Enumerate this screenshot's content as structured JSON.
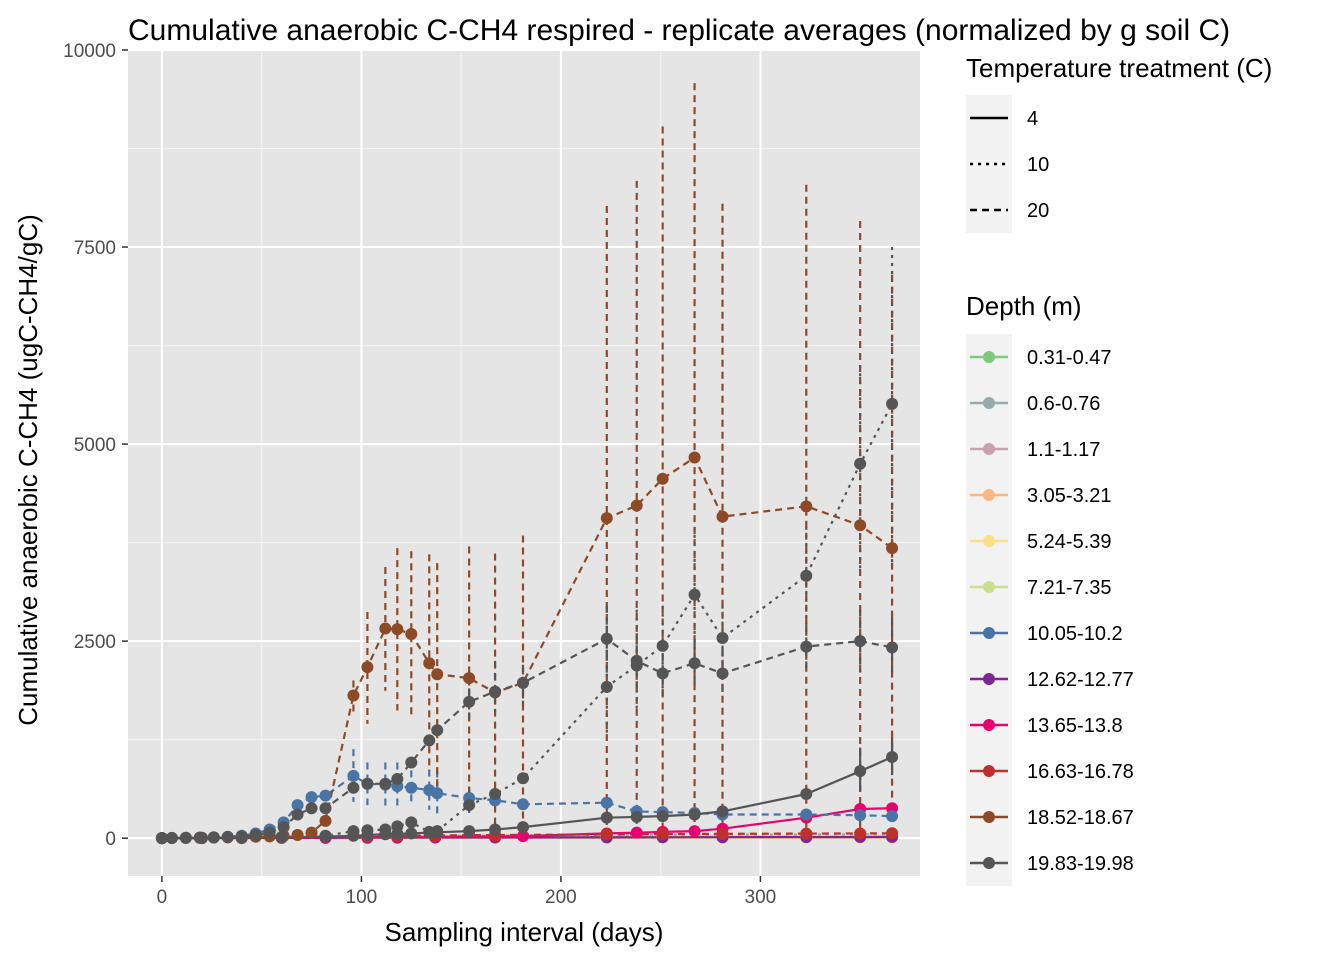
{
  "chart_data": {
    "type": "line",
    "title": "Cumulative anaerobic C-CH4 respired - replicate averages (normalized by g soil C)",
    "xlabel": "Sampling interval (days)",
    "ylabel": "Cumulative anaerobic C-CH4 (ugC-CH4/gC)",
    "xlim": [
      -17,
      380
    ],
    "ylim": [
      -480,
      10000
    ],
    "x_ticks": [
      0,
      100,
      200,
      300
    ],
    "y_ticks": [
      0,
      2500,
      5000,
      7500,
      10000
    ],
    "x_tick_labels": [
      "0",
      "100",
      "200",
      "300"
    ],
    "y_tick_labels": [
      "0",
      "2500",
      "5000",
      "7500",
      "10000"
    ],
    "grid": true,
    "legend_placement": "right",
    "linetype_legend": {
      "title": "Temperature treatment (C)",
      "entries": [
        {
          "label": "4",
          "dash": "solid"
        },
        {
          "label": "10",
          "dash": "dotted"
        },
        {
          "label": "20",
          "dash": "dashed"
        }
      ]
    },
    "color_legend": {
      "title": "Depth (m)",
      "entries": [
        {
          "label": "0.31-0.47",
          "color": "#7fc97f"
        },
        {
          "label": "0.6-0.76",
          "color": "#99aaaa"
        },
        {
          "label": "1.1-1.17",
          "color": "#c9a0ab"
        },
        {
          "label": "3.05-3.21",
          "color": "#f8b886"
        },
        {
          "label": "5.24-5.39",
          "color": "#fede88"
        },
        {
          "label": "7.21-7.35",
          "color": "#cbde8f"
        },
        {
          "label": "10.05-10.2",
          "color": "#4a74a5"
        },
        {
          "label": "12.62-12.77",
          "color": "#7d2793"
        },
        {
          "label": "13.65-13.8",
          "color": "#e7046f"
        },
        {
          "label": "16.63-16.78",
          "color": "#c0302a"
        },
        {
          "label": "18.52-18.67",
          "color": "#8c4a26"
        },
        {
          "label": "19.83-19.98",
          "color": "#555555"
        }
      ]
    },
    "series": [
      {
        "depth": "0.31-0.47",
        "temperature": "4",
        "color": "#7fc97f",
        "x": [
          0,
          20,
          40,
          60,
          82,
          103,
          118,
          137,
          167,
          223,
          251,
          281,
          323,
          350,
          366
        ],
        "y": [
          0,
          2,
          4,
          6,
          8,
          10,
          11,
          12,
          14,
          16,
          17,
          18,
          19,
          20,
          20
        ]
      },
      {
        "depth": "0.6-0.76",
        "temperature": "10",
        "color": "#99aaaa",
        "x": [
          0,
          20,
          40,
          60,
          82,
          103,
          118,
          137,
          167,
          223,
          251,
          281,
          323,
          350,
          366
        ],
        "y": [
          0,
          3,
          6,
          10,
          15,
          20,
          24,
          28,
          34,
          40,
          43,
          45,
          48,
          50,
          52
        ]
      },
      {
        "depth": "3.05-3.21",
        "temperature": "4",
        "color": "#f8b886",
        "x": [
          0,
          20,
          40,
          60,
          82,
          103,
          118,
          137,
          167,
          223,
          251,
          281,
          323,
          350,
          366
        ],
        "y": [
          0,
          1,
          2,
          3,
          4,
          5,
          6,
          6,
          7,
          8,
          8,
          9,
          9,
          10,
          10
        ]
      },
      {
        "depth": "5.24-5.39",
        "temperature": "4",
        "color": "#fede88",
        "x": [
          0,
          20,
          40,
          60,
          82,
          103,
          118,
          137,
          167,
          223,
          251,
          281,
          323,
          350,
          366
        ],
        "y": [
          0,
          0,
          0,
          0,
          0,
          0,
          0,
          0,
          0,
          0,
          0,
          0,
          0,
          0,
          0
        ]
      },
      {
        "depth": "12.62-12.77",
        "temperature": "4",
        "color": "#7d2793",
        "x": [
          0,
          20,
          40,
          60,
          82,
          103,
          118,
          137,
          167,
          223,
          251,
          281,
          323,
          350,
          366
        ],
        "y": [
          0,
          1,
          2,
          3,
          4,
          6,
          7,
          8,
          9,
          10,
          11,
          12,
          13,
          14,
          15
        ]
      },
      {
        "depth": "13.65-13.8",
        "temperature": "4",
        "color": "#e7046f",
        "x": [
          0,
          20,
          40,
          60,
          82,
          103,
          118,
          137,
          167,
          181,
          223,
          238,
          251,
          267,
          281,
          323,
          350,
          366
        ],
        "y": [
          0,
          2,
          5,
          8,
          10,
          14,
          16,
          18,
          22,
          26,
          60,
          70,
          80,
          90,
          120,
          260,
          370,
          380
        ]
      },
      {
        "depth": "16.63-16.78",
        "temperature": "20",
        "color": "#c0302a",
        "x": [
          0,
          20,
          40,
          60,
          82,
          103,
          118,
          137,
          167,
          223,
          251,
          281,
          323,
          350,
          366
        ],
        "y": [
          0,
          5,
          10,
          15,
          20,
          25,
          30,
          35,
          40,
          48,
          52,
          55,
          58,
          60,
          62
        ]
      },
      {
        "depth": "10.05-10.2",
        "temperature": "20",
        "color": "#4a74a5",
        "x": [
          0,
          5,
          12,
          19,
          26,
          33,
          40,
          47,
          54,
          61,
          68,
          75,
          82,
          96,
          103,
          112,
          118,
          125,
          134,
          138,
          154,
          167,
          181,
          223,
          238,
          251,
          267,
          281,
          323,
          350,
          366
        ],
        "y": [
          0,
          3,
          5,
          8,
          12,
          18,
          30,
          60,
          110,
          200,
          420,
          520,
          540,
          790,
          690,
          680,
          660,
          640,
          610,
          570,
          510,
          480,
          430,
          450,
          340,
          330,
          320,
          300,
          300,
          290,
          280
        ],
        "errors": {
          "x": [
            96,
            103,
            112,
            118,
            125,
            134,
            138,
            154
          ],
          "upper": [
            1130,
            960,
            960,
            960,
            860,
            870,
            860,
            640
          ],
          "lower": [
            460,
            420,
            400,
            380,
            430,
            360,
            290,
            320
          ]
        }
      },
      {
        "depth": "18.52-18.67",
        "temperature": "20",
        "color": "#8c4a26",
        "x": [
          0,
          5,
          12,
          19,
          26,
          33,
          40,
          47,
          54,
          61,
          68,
          75,
          82,
          96,
          103,
          112,
          118,
          125,
          134,
          138,
          154,
          167,
          181,
          223,
          238,
          251,
          267,
          281,
          323,
          350,
          366
        ],
        "y": [
          0,
          2,
          4,
          6,
          8,
          10,
          14,
          18,
          22,
          28,
          40,
          70,
          220,
          1810,
          2170,
          2660,
          2650,
          2590,
          2220,
          2080,
          2030,
          1850,
          1970,
          4060,
          4220,
          4560,
          4830,
          4080,
          4210,
          3970,
          3680
        ],
        "errors": {
          "x": [
            96,
            103,
            112,
            118,
            125,
            134,
            138,
            154,
            167,
            181,
            223,
            238,
            251,
            267,
            281,
            323,
            350,
            366
          ],
          "upper": [
            2000,
            2870,
            3440,
            3680,
            3640,
            3600,
            3490,
            3700,
            3610,
            3840,
            8020,
            8340,
            9030,
            9580,
            8050,
            8290,
            7830,
            7150
          ],
          "lower": [
            1550,
            1450,
            1870,
            1620,
            1540,
            850,
            650,
            330,
            110,
            80,
            80,
            80,
            80,
            80,
            80,
            80,
            80,
            180
          ]
        }
      },
      {
        "depth": "19.83-19.98",
        "temperature": "4",
        "color": "#555555",
        "x": [
          0,
          20,
          40,
          60,
          82,
          96,
          103,
          112,
          118,
          125,
          134,
          138,
          154,
          167,
          181,
          223,
          238,
          251,
          267,
          281,
          323,
          350,
          366
        ],
        "y": [
          0,
          2,
          5,
          10,
          20,
          30,
          40,
          50,
          55,
          60,
          70,
          75,
          90,
          110,
          140,
          260,
          270,
          280,
          300,
          340,
          560,
          850,
          1030
        ],
        "errors": {
          "x": [
            350,
            366
          ],
          "upper": [
            1150,
            1280
          ],
          "lower": [
            600,
            800
          ]
        }
      },
      {
        "depth": "19.83-19.98",
        "temperature": "10",
        "color": "#555555",
        "x": [
          0,
          20,
          40,
          60,
          82,
          96,
          103,
          112,
          118,
          125,
          134,
          138,
          154,
          167,
          181,
          223,
          238,
          251,
          267,
          281,
          323,
          350,
          366
        ],
        "y": [
          0,
          4,
          8,
          15,
          30,
          90,
          100,
          110,
          150,
          200,
          80,
          90,
          420,
          560,
          760,
          1920,
          2190,
          2440,
          3090,
          2540,
          3330,
          4750,
          5510
        ],
        "errors": {
          "x": [
            223,
            238,
            251,
            267,
            281,
            323,
            350,
            366
          ],
          "upper": [
            2900,
            2900,
            2950,
            3950,
            2950,
            3950,
            6000,
            7500
          ],
          "lower": [
            1300,
            1600,
            1900,
            2300,
            2100,
            2700,
            3400,
            3500
          ]
        }
      },
      {
        "depth": "19.83-19.98",
        "temperature": "20",
        "color": "#555555",
        "x": [
          0,
          5,
          12,
          19,
          26,
          33,
          40,
          47,
          54,
          61,
          68,
          75,
          82,
          96,
          103,
          112,
          118,
          125,
          134,
          138,
          154,
          167,
          181,
          223,
          238,
          251,
          267,
          281,
          323,
          350,
          366
        ],
        "y": [
          0,
          2,
          4,
          6,
          8,
          15,
          25,
          40,
          70,
          140,
          300,
          380,
          380,
          640,
          690,
          690,
          750,
          960,
          1240,
          1370,
          1730,
          1860,
          1970,
          2530,
          2250,
          2090,
          2220,
          2090,
          2430,
          2500,
          2420
        ],
        "errors": {
          "x": [
            154,
            167,
            181,
            223,
            238,
            251,
            267,
            281,
            323,
            350,
            366
          ],
          "upper": [
            1900,
            2250,
            2200,
            2950,
            2600,
            2500,
            2500,
            2400,
            2700,
            2900,
            2800
          ],
          "lower": [
            1450,
            1600,
            1700,
            2100,
            1900,
            1800,
            1900,
            1850,
            2100,
            2100,
            2050
          ]
        }
      }
    ]
  }
}
